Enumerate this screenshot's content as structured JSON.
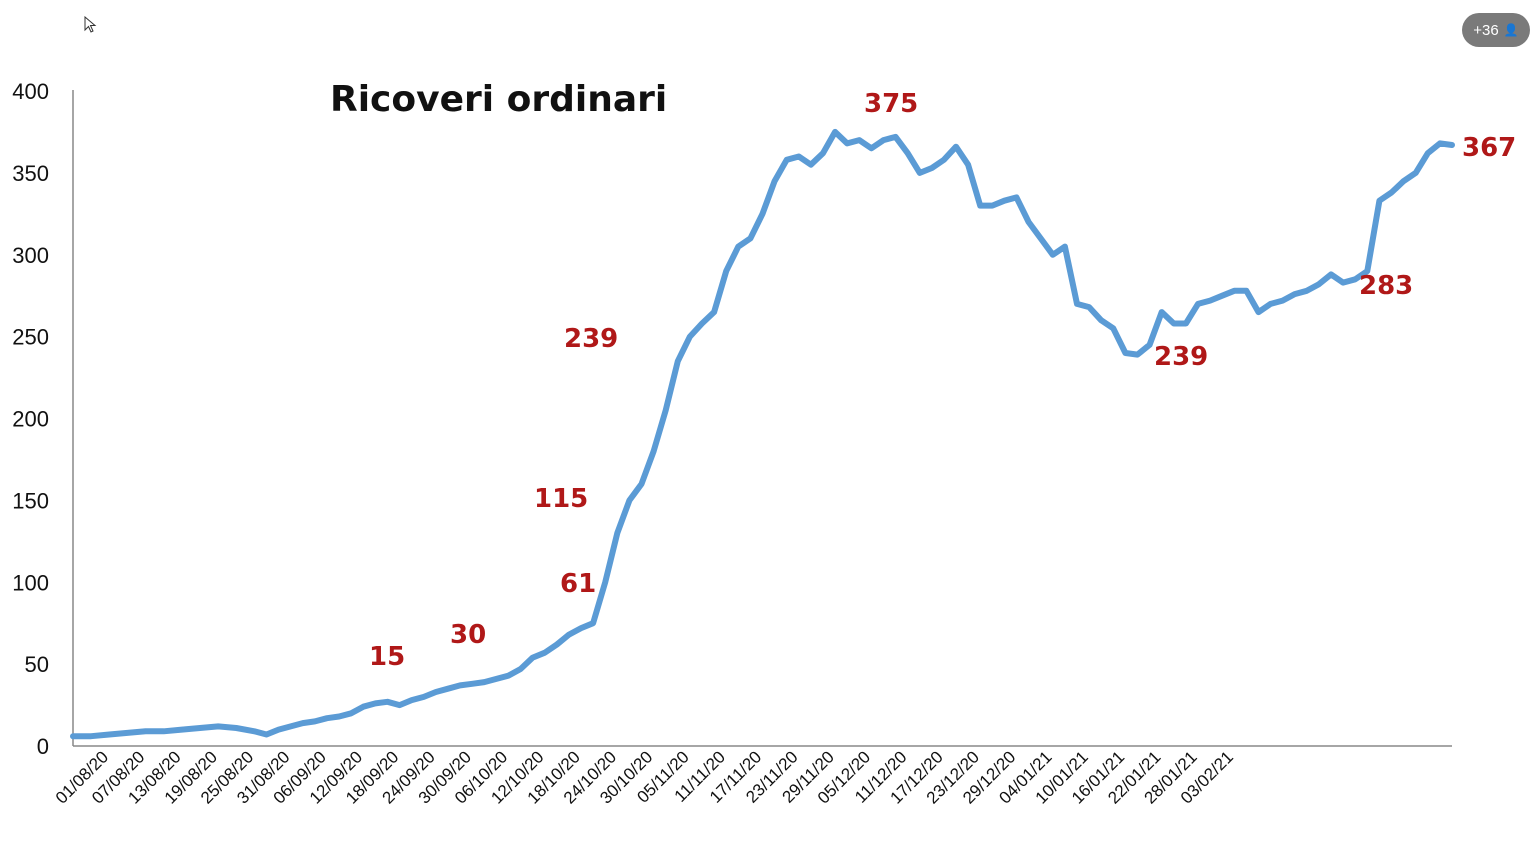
{
  "overlay": {
    "participants_label": "+36",
    "participants_icon": "person-icon",
    "cursor_icon": "mouse-pointer-icon"
  },
  "chart_data": {
    "type": "line",
    "title": "Ricoveri ordinari",
    "xlabel": "",
    "ylabel": "",
    "ylim": [
      0,
      400
    ],
    "yticks": [
      0,
      50,
      100,
      150,
      200,
      250,
      300,
      350,
      400
    ],
    "xticks": [
      "01/08/20",
      "07/08/20",
      "13/08/20",
      "19/08/20",
      "25/08/20",
      "31/08/20",
      "06/09/20",
      "12/09/20",
      "18/09/20",
      "24/09/20",
      "30/09/20",
      "06/10/20",
      "12/10/20",
      "18/10/20",
      "24/10/20",
      "30/10/20",
      "05/11/20",
      "11/11/20",
      "17/11/20",
      "23/11/20",
      "29/11/20",
      "05/12/20",
      "11/12/20",
      "17/12/20",
      "23/12/20",
      "29/12/20",
      "04/01/21",
      "10/01/21",
      "16/01/21",
      "22/01/21",
      "28/01/21",
      "03/02/21"
    ],
    "grid": false,
    "line_color": "#5b9bd5",
    "annotation_color": "#b01818",
    "series": [
      {
        "values": [
          [
            0,
            6
          ],
          [
            3,
            6
          ],
          [
            6,
            7
          ],
          [
            9,
            8
          ],
          [
            12,
            9
          ],
          [
            15,
            9
          ],
          [
            18,
            10
          ],
          [
            21,
            11
          ],
          [
            24,
            12
          ],
          [
            27,
            11
          ],
          [
            30,
            9
          ],
          [
            32,
            7
          ],
          [
            34,
            10
          ],
          [
            36,
            12
          ],
          [
            38,
            14
          ],
          [
            40,
            15
          ],
          [
            42,
            17
          ],
          [
            44,
            18
          ],
          [
            46,
            20
          ],
          [
            48,
            24
          ],
          [
            50,
            26
          ],
          [
            52,
            27
          ],
          [
            54,
            25
          ],
          [
            56,
            28
          ],
          [
            58,
            30
          ],
          [
            60,
            33
          ],
          [
            62,
            35
          ],
          [
            64,
            37
          ],
          [
            66,
            38
          ],
          [
            68,
            39
          ],
          [
            70,
            41
          ],
          [
            72,
            43
          ],
          [
            74,
            47
          ],
          [
            76,
            54
          ],
          [
            78,
            57
          ],
          [
            80,
            62
          ],
          [
            82,
            68
          ],
          [
            84,
            72
          ],
          [
            86,
            75
          ],
          [
            88,
            100
          ],
          [
            90,
            130
          ],
          [
            92,
            150
          ],
          [
            94,
            160
          ],
          [
            96,
            180
          ],
          [
            98,
            205
          ],
          [
            100,
            235
          ],
          [
            102,
            250
          ],
          [
            104,
            258
          ],
          [
            106,
            265
          ],
          [
            108,
            290
          ],
          [
            110,
            305
          ],
          [
            112,
            310
          ],
          [
            114,
            325
          ],
          [
            116,
            345
          ],
          [
            118,
            358
          ],
          [
            120,
            360
          ],
          [
            122,
            355
          ],
          [
            124,
            362
          ],
          [
            126,
            375
          ],
          [
            128,
            368
          ],
          [
            130,
            370
          ],
          [
            132,
            365
          ],
          [
            134,
            370
          ],
          [
            136,
            372
          ],
          [
            138,
            362
          ],
          [
            140,
            350
          ],
          [
            142,
            353
          ],
          [
            144,
            358
          ],
          [
            146,
            366
          ],
          [
            148,
            355
          ],
          [
            150,
            330
          ],
          [
            152,
            330
          ],
          [
            154,
            333
          ],
          [
            156,
            335
          ],
          [
            158,
            320
          ],
          [
            160,
            310
          ],
          [
            162,
            300
          ],
          [
            164,
            305
          ],
          [
            166,
            270
          ],
          [
            168,
            268
          ],
          [
            170,
            260
          ],
          [
            172,
            255
          ],
          [
            174,
            240
          ],
          [
            176,
            239
          ],
          [
            178,
            245
          ],
          [
            180,
            265
          ],
          [
            182,
            258
          ],
          [
            184,
            258
          ],
          [
            186,
            270
          ],
          [
            188,
            272
          ],
          [
            190,
            275
          ],
          [
            192,
            278
          ],
          [
            194,
            278
          ],
          [
            196,
            265
          ],
          [
            198,
            270
          ],
          [
            200,
            272
          ],
          [
            202,
            276
          ],
          [
            204,
            278
          ],
          [
            206,
            282
          ],
          [
            208,
            288
          ],
          [
            210,
            283
          ],
          [
            212,
            285
          ],
          [
            214,
            290
          ],
          [
            216,
            333
          ],
          [
            218,
            338
          ],
          [
            220,
            345
          ],
          [
            222,
            350
          ],
          [
            224,
            362
          ],
          [
            226,
            368
          ],
          [
            228,
            367
          ]
        ]
      }
    ],
    "annotations": [
      "375",
      "367",
      "239",
      "283",
      "239",
      "115",
      "61",
      "30",
      "15"
    ]
  }
}
